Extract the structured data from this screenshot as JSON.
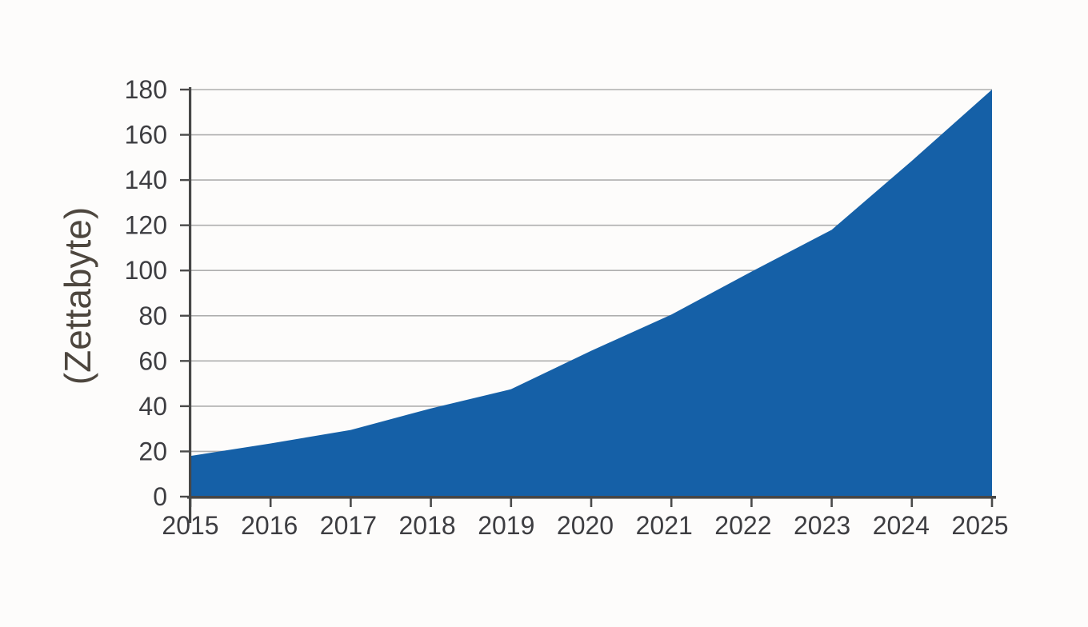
{
  "chart_data": {
    "type": "area",
    "categories": [
      "2015",
      "2016",
      "2017",
      "2018",
      "2019",
      "2020",
      "2021",
      "2022",
      "2023",
      "2024",
      "2025"
    ],
    "values": [
      18,
      23.5,
      29.5,
      39,
      47.5,
      64.5,
      80.5,
      99.5,
      118,
      148.5,
      180
    ],
    "title": "",
    "xlabel": "",
    "ylabel": "(Zettabyte)",
    "ylim": [
      0,
      180
    ],
    "y_ticks": [
      0,
      20,
      40,
      60,
      80,
      100,
      120,
      140,
      160,
      180
    ],
    "grid": true,
    "legend": "none",
    "colors": {
      "area": "#1560a7",
      "gridline": "#aeaeae",
      "axis": "#474747",
      "tick_mark": "#4a4a4a",
      "tick_label": "#3d3d41",
      "axis_label": "#4d463e",
      "background": "#fdfcfb"
    }
  }
}
